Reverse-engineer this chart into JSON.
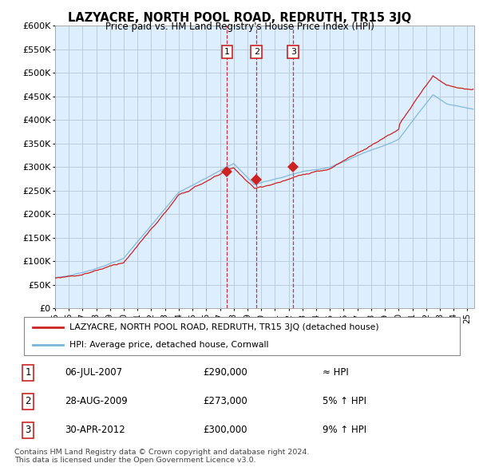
{
  "title": "LAZYACRE, NORTH POOL ROAD, REDRUTH, TR15 3JQ",
  "subtitle": "Price paid vs. HM Land Registry's House Price Index (HPI)",
  "ylim": [
    0,
    600000
  ],
  "yticks": [
    0,
    50000,
    100000,
    150000,
    200000,
    250000,
    300000,
    350000,
    400000,
    450000,
    500000,
    550000,
    600000
  ],
  "ytick_labels": [
    "£0",
    "£50K",
    "£100K",
    "£150K",
    "£200K",
    "£250K",
    "£300K",
    "£350K",
    "£400K",
    "£450K",
    "£500K",
    "£550K",
    "£600K"
  ],
  "hpi_color": "#7ab4d8",
  "price_color": "#cc2222",
  "marker_color": "#cc2222",
  "dashed_color": "#cc2222",
  "chart_bg_color": "#ddeeff",
  "grid_color": "#bbccdd",
  "legend_border_color": "#aaaaaa",
  "legend_box_color": "#cc2222",
  "sale_points": [
    {
      "date_num": 2007.51,
      "price": 290000,
      "label": "1"
    },
    {
      "date_num": 2009.66,
      "price": 273000,
      "label": "2"
    },
    {
      "date_num": 2012.33,
      "price": 300000,
      "label": "3"
    }
  ],
  "table_entries": [
    {
      "num": "1",
      "date": "06-JUL-2007",
      "price": "£290,000",
      "vs_hpi": "≈ HPI"
    },
    {
      "num": "2",
      "date": "28-AUG-2009",
      "price": "£273,000",
      "vs_hpi": "5% ↑ HPI"
    },
    {
      "num": "3",
      "date": "30-APR-2012",
      "price": "£300,000",
      "vs_hpi": "9% ↑ HPI"
    }
  ],
  "copyright_text": "Contains HM Land Registry data © Crown copyright and database right 2024.\nThis data is licensed under the Open Government Licence v3.0.",
  "legend_entries": [
    "LAZYACRE, NORTH POOL ROAD, REDRUTH, TR15 3JQ (detached house)",
    "HPI: Average price, detached house, Cornwall"
  ]
}
